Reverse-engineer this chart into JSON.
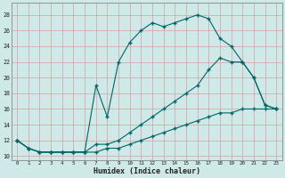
{
  "xlabel": "Humidex (Indice chaleur)",
  "bg_color": "#cfe8e8",
  "grid_color": "#c0d8d8",
  "line_color": "#006666",
  "xlim": [
    -0.5,
    23.5
  ],
  "ylim": [
    9.5,
    29.5
  ],
  "yticks": [
    10,
    12,
    14,
    16,
    18,
    20,
    22,
    24,
    26,
    28
  ],
  "xticks": [
    0,
    1,
    2,
    3,
    4,
    5,
    6,
    7,
    8,
    9,
    10,
    11,
    12,
    13,
    14,
    15,
    16,
    17,
    18,
    19,
    20,
    21,
    22,
    23
  ],
  "curve1_x": [
    0,
    1,
    2,
    3,
    4,
    5,
    6,
    7,
    8,
    9,
    10,
    11,
    12,
    13,
    14,
    15,
    16,
    17,
    18,
    19,
    20,
    21,
    22,
    23
  ],
  "curve1_y": [
    12,
    11,
    10.5,
    10.5,
    10.5,
    10.5,
    10.5,
    19,
    15,
    22,
    24.5,
    26,
    27,
    26.5,
    27,
    27.5,
    28,
    27.5,
    25,
    24,
    22,
    20,
    16.5,
    16
  ],
  "curve2_x": [
    0,
    1,
    2,
    3,
    4,
    5,
    6,
    7,
    8,
    9,
    10,
    11,
    12,
    13,
    14,
    15,
    16,
    17,
    18,
    19,
    20,
    21,
    22,
    23
  ],
  "curve2_y": [
    12,
    11,
    10.5,
    10.5,
    10.5,
    10.5,
    10.5,
    11.5,
    11.5,
    12,
    13,
    14,
    15,
    16,
    17,
    18,
    19,
    21,
    22.5,
    22,
    22,
    20,
    16.5,
    16
  ],
  "curve3_x": [
    0,
    1,
    2,
    3,
    4,
    5,
    6,
    7,
    8,
    9,
    10,
    11,
    12,
    13,
    14,
    15,
    16,
    17,
    18,
    19,
    20,
    21,
    22,
    23
  ],
  "curve3_y": [
    12,
    11,
    10.5,
    10.5,
    10.5,
    10.5,
    10.5,
    10.5,
    11,
    11,
    11.5,
    12,
    12.5,
    13,
    13.5,
    14,
    14.5,
    15,
    15.5,
    15.5,
    16,
    16,
    16,
    16
  ]
}
